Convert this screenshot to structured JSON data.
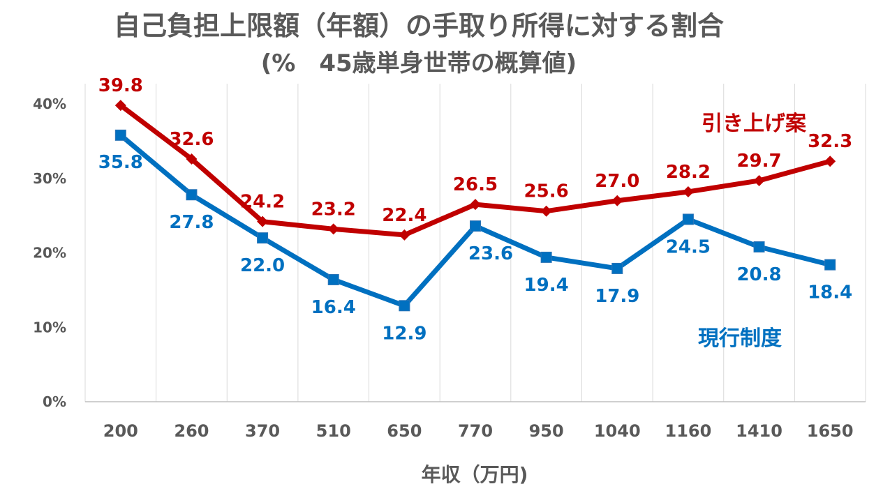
{
  "chart_data": {
    "type": "line",
    "title": "自己負担上限額（年額）の手取り所得に対する割合",
    "subtitle": "(%　45歳単身世帯の概算値)",
    "xlabel": "年収（万円)",
    "ylabel": "",
    "categories": [
      "200",
      "260",
      "370",
      "510",
      "650",
      "770",
      "950",
      "1040",
      "1160",
      "1410",
      "1650"
    ],
    "ylim": [
      0,
      40
    ],
    "yticks": [
      "0%",
      "10%",
      "20%",
      "30%",
      "40%"
    ],
    "grid": "vertical",
    "legend": "none",
    "series": [
      {
        "name": "引き上げ案",
        "color": "#C00000",
        "marker": "diamond",
        "values": [
          39.8,
          32.6,
          24.2,
          23.2,
          22.4,
          26.5,
          25.6,
          27.0,
          28.2,
          29.7,
          32.3
        ],
        "labels": [
          "39.8",
          "32.6",
          "24.2",
          "23.2",
          "22.4",
          "26.5",
          "25.6",
          "27.0",
          "28.2",
          "29.7",
          "32.3"
        ]
      },
      {
        "name": "現行制度",
        "color": "#0070C0",
        "marker": "square",
        "values": [
          35.8,
          27.8,
          22.0,
          16.4,
          12.9,
          23.6,
          19.4,
          17.9,
          24.5,
          20.8,
          18.4
        ],
        "labels": [
          "35.8",
          "27.8",
          "22.0",
          "16.4",
          "12.9",
          "23.6",
          "19.4",
          "17.9",
          "24.5",
          "20.8",
          "18.4"
        ]
      }
    ]
  }
}
